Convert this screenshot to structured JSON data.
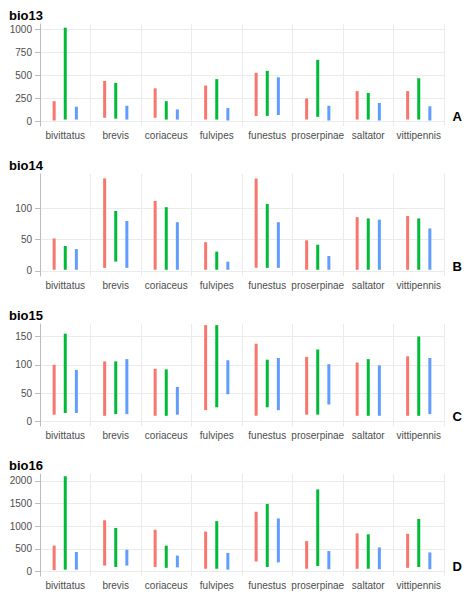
{
  "chart_data": [
    {
      "type": "range",
      "title": "bio13",
      "annotation": "A",
      "categories": [
        "bivittatus",
        "brevis",
        "coriaceus",
        "fulvipes",
        "funestus",
        "proserpinae",
        "saltator",
        "vittipennis"
      ],
      "series": [
        {
          "color": "#F8766D",
          "values": [
            [
              10,
              220
            ],
            [
              40,
              440
            ],
            [
              40,
              360
            ],
            [
              20,
              390
            ],
            [
              60,
              530
            ],
            [
              20,
              250
            ],
            [
              20,
              330
            ],
            [
              20,
              330
            ]
          ]
        },
        {
          "color": "#00BA38",
          "values": [
            [
              20,
              1020
            ],
            [
              30,
              420
            ],
            [
              20,
              220
            ],
            [
              20,
              460
            ],
            [
              60,
              550
            ],
            [
              50,
              670
            ],
            [
              20,
              310
            ],
            [
              20,
              470
            ]
          ]
        },
        {
          "color": "#619CFF",
          "values": [
            [
              20,
              160
            ],
            [
              20,
              170
            ],
            [
              20,
              130
            ],
            [
              10,
              145
            ],
            [
              70,
              480
            ],
            [
              10,
              170
            ],
            [
              10,
              200
            ],
            [
              10,
              165
            ]
          ]
        }
      ],
      "ylim": [
        -50,
        1060
      ],
      "yticks": [
        0,
        250,
        500,
        750,
        1000
      ],
      "grid": true
    },
    {
      "type": "range",
      "title": "bio14",
      "annotation": "B",
      "categories": [
        "bivittatus",
        "brevis",
        "coriaceus",
        "fulvipes",
        "funestus",
        "proserpinae",
        "saltator",
        "vittipennis"
      ],
      "series": [
        {
          "color": "#F8766D",
          "values": [
            [
              2,
              52
            ],
            [
              5,
              148
            ],
            [
              2,
              112
            ],
            [
              2,
              46
            ],
            [
              5,
              148
            ],
            [
              2,
              49
            ],
            [
              2,
              86
            ],
            [
              2,
              88
            ]
          ]
        },
        {
          "color": "#00BA38",
          "values": [
            [
              2,
              40
            ],
            [
              15,
              96
            ],
            [
              2,
              102
            ],
            [
              2,
              31
            ],
            [
              5,
              107
            ],
            [
              2,
              42
            ],
            [
              2,
              84
            ],
            [
              2,
              84
            ]
          ]
        },
        {
          "color": "#619CFF",
          "values": [
            [
              2,
              35
            ],
            [
              5,
              80
            ],
            [
              2,
              78
            ],
            [
              2,
              15
            ],
            [
              5,
              78
            ],
            [
              2,
              24
            ],
            [
              2,
              82
            ],
            [
              2,
              68
            ]
          ]
        }
      ],
      "ylim": [
        -8,
        155
      ],
      "yticks": [
        0,
        50,
        100
      ],
      "grid": true
    },
    {
      "type": "range",
      "title": "bio15",
      "annotation": "C",
      "categories": [
        "bivittatus",
        "brevis",
        "coriaceus",
        "fulvipes",
        "funestus",
        "proserpinae",
        "saltator",
        "vittipennis"
      ],
      "series": [
        {
          "color": "#F8766D",
          "values": [
            [
              12,
              100
            ],
            [
              10,
              106
            ],
            [
              10,
              93
            ],
            [
              20,
              170
            ],
            [
              10,
              137
            ],
            [
              12,
              114
            ],
            [
              10,
              104
            ],
            [
              10,
              115
            ]
          ]
        },
        {
          "color": "#00BA38",
          "values": [
            [
              15,
              155
            ],
            [
              13,
              106
            ],
            [
              10,
              92
            ],
            [
              25,
              170
            ],
            [
              25,
              109
            ],
            [
              12,
              127
            ],
            [
              10,
              110
            ],
            [
              10,
              150
            ]
          ]
        },
        {
          "color": "#619CFF",
          "values": [
            [
              15,
              91
            ],
            [
              13,
              110
            ],
            [
              12,
              61
            ],
            [
              48,
              108
            ],
            [
              20,
              112
            ],
            [
              30,
              101
            ],
            [
              10,
              99
            ],
            [
              13,
              112
            ]
          ]
        }
      ],
      "ylim": [
        -8,
        172
      ],
      "yticks": [
        0,
        50,
        100,
        150
      ],
      "grid": true
    },
    {
      "type": "range",
      "title": "bio16",
      "annotation": "D",
      "categories": [
        "bivittatus",
        "brevis",
        "coriaceus",
        "fulvipes",
        "funestus",
        "proserpinae",
        "saltator",
        "vittipennis"
      ],
      "series": [
        {
          "color": "#F8766D",
          "values": [
            [
              30,
              570
            ],
            [
              130,
              1130
            ],
            [
              100,
              920
            ],
            [
              60,
              880
            ],
            [
              220,
              1320
            ],
            [
              60,
              670
            ],
            [
              60,
              840
            ],
            [
              80,
              830
            ]
          ]
        },
        {
          "color": "#00BA38",
          "values": [
            [
              40,
              2100
            ],
            [
              100,
              960
            ],
            [
              80,
              570
            ],
            [
              60,
              1110
            ],
            [
              100,
              1490
            ],
            [
              120,
              1810
            ],
            [
              60,
              820
            ],
            [
              100,
              1160
            ]
          ]
        },
        {
          "color": "#619CFF",
          "values": [
            [
              40,
              430
            ],
            [
              130,
              480
            ],
            [
              90,
              350
            ],
            [
              40,
              410
            ],
            [
              200,
              1170
            ],
            [
              50,
              450
            ],
            [
              50,
              530
            ],
            [
              50,
              420
            ]
          ]
        }
      ],
      "ylim": [
        -100,
        2150
      ],
      "yticks": [
        0,
        500,
        1000,
        1500,
        2000
      ],
      "grid": true
    }
  ]
}
